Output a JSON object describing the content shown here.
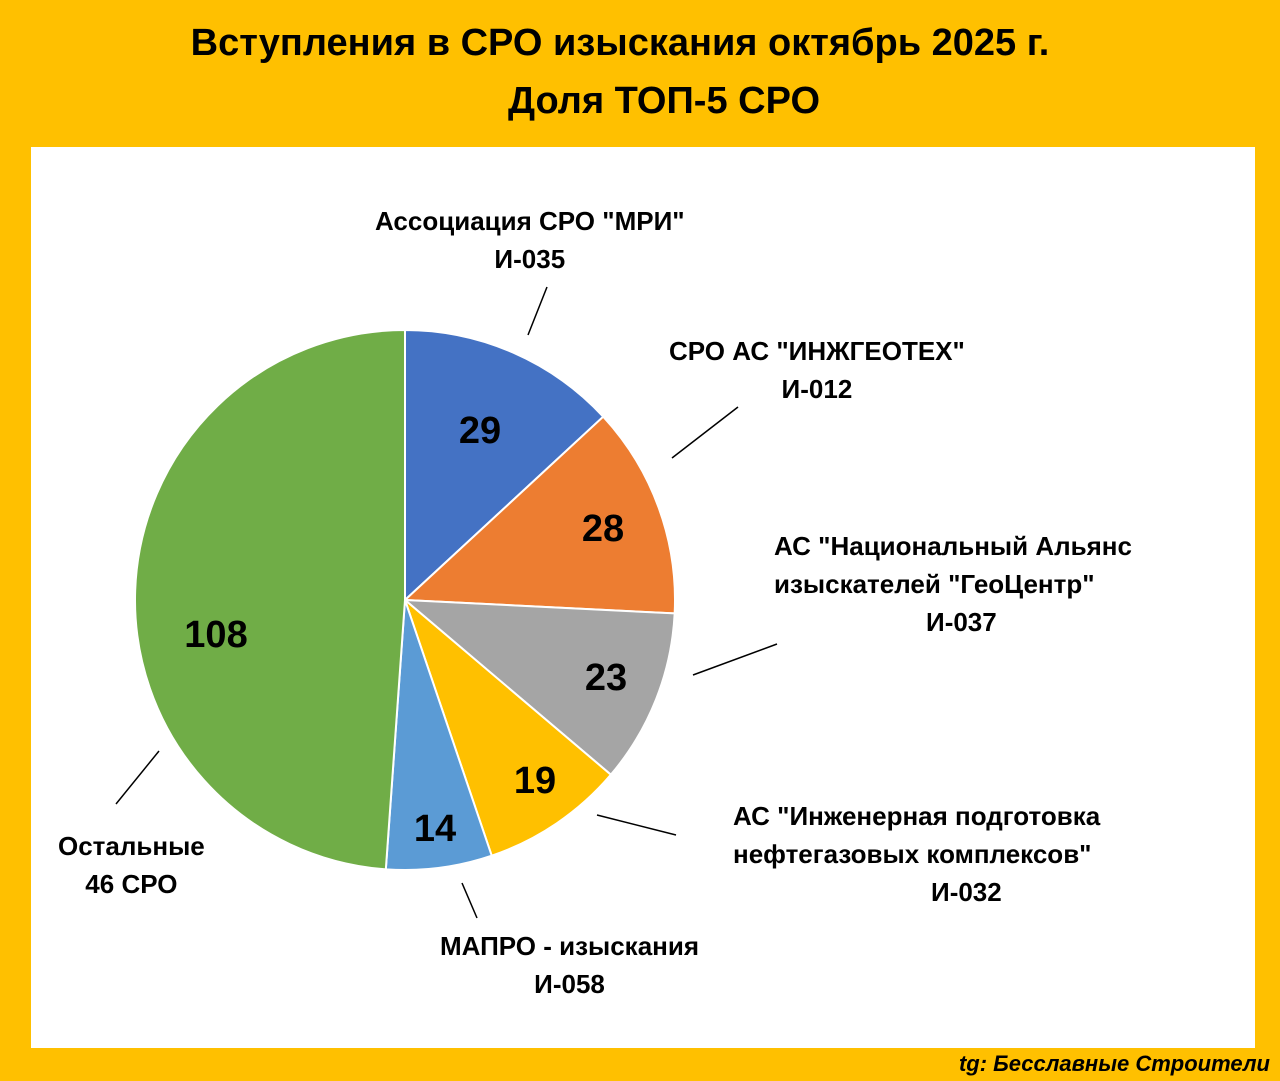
{
  "title_line1": "Вступления в СРО изыскания октябрь 2025 г.",
  "title_line2": "Доля ТОП-5 СРО",
  "footer": "tg: Бесславные Строители",
  "chart_data": {
    "type": "pie",
    "title": "Вступления в СРО изыскания октябрь 2025 г. Доля ТОП-5 СРО",
    "slices": [
      {
        "name": "Ассоциация СРО \"МРИ\"",
        "code": "И-035",
        "value": 29,
        "color": "#4472C4"
      },
      {
        "name": "СРО АС \"ИНЖГЕОТЕХ\"",
        "code": "И-012",
        "value": 28,
        "color": "#ED7D31"
      },
      {
        "name": "АС \"Национальный Альянс изыскателей \"ГеоЦентр\"",
        "line1": "АС \"Национальный Альянс",
        "line2": "изыскателей \"ГеоЦентр\"",
        "code": "И-037",
        "value": 23,
        "color": "#A5A5A5"
      },
      {
        "name": "АС \"Инженерная подготовка нефтегазовых комплексов\"",
        "line1": "АС \"Инженерная подготовка",
        "line2": "нефтегазовых комплексов\"",
        "code": "И-032",
        "value": 19,
        "color": "#FFC000"
      },
      {
        "name": "МАПРО - изыскания",
        "code": "И-058",
        "value": 14,
        "color": "#5B9BD5"
      },
      {
        "name": "Остальные",
        "code": "46 СРО",
        "value": 108,
        "color": "#70AD47"
      }
    ]
  }
}
